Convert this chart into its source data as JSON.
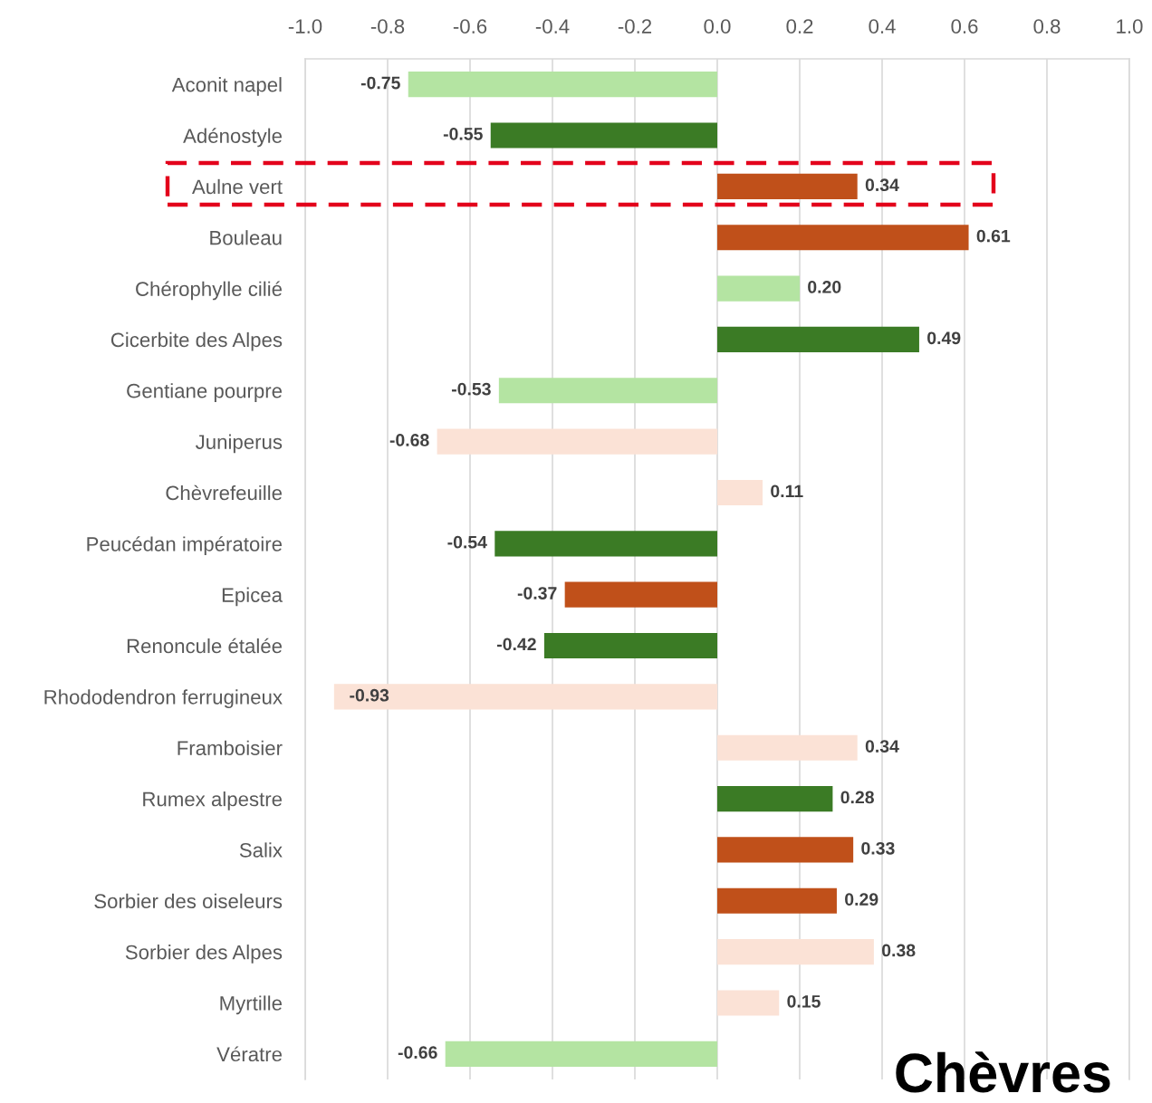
{
  "chart_data": {
    "type": "bar",
    "orientation": "horizontal",
    "categories": [
      "Aconit napel",
      "Adénostyle",
      "Aulne vert",
      "Bouleau",
      "Chérophylle cilié",
      "Cicerbite des Alpes",
      "Gentiane pourpre",
      "Juniperus",
      "Chèvrefeuille",
      "Peucédan impératoire",
      "Epicea",
      "Renoncule étalée",
      "Rhododendron ferrugineux",
      "Framboisier",
      "Rumex alpestre",
      "Salix",
      "Sorbier des oiseleurs",
      "Sorbier des Alpes",
      "Myrtille",
      "Vératre"
    ],
    "values": [
      -0.75,
      -0.55,
      0.34,
      0.61,
      0.2,
      0.49,
      -0.53,
      -0.68,
      0.11,
      -0.54,
      -0.37,
      -0.42,
      -0.93,
      0.34,
      0.28,
      0.33,
      0.29,
      0.38,
      0.15,
      -0.66
    ],
    "colors": [
      "#b4e4a2",
      "#3b7b25",
      "#c0501a",
      "#c0501a",
      "#b4e4a2",
      "#3b7b25",
      "#b4e4a2",
      "#fbe2d6",
      "#fbe2d6",
      "#3b7b25",
      "#c0501a",
      "#3b7b25",
      "#fbe2d6",
      "#fbe2d6",
      "#3b7b25",
      "#c0501a",
      "#c0501a",
      "#fbe2d6",
      "#fbe2d6",
      "#b4e4a2"
    ],
    "value_labels": [
      "-0.75",
      "-0.55",
      "0.34",
      "0.61",
      "0.20",
      "0.49",
      "-0.53",
      "-0.68",
      "0.11",
      "-0.54",
      "-0.37",
      "-0.42",
      "-0.93",
      "0.34",
      "0.28",
      "0.33",
      "0.29",
      "0.38",
      "0.15",
      "-0.66"
    ],
    "xlim": [
      -1.0,
      1.0
    ],
    "xticks": [
      {
        "value": -1.0,
        "label": "-1.0"
      },
      {
        "value": -0.8,
        "label": "-0.8"
      },
      {
        "value": -0.6,
        "label": "-0.6"
      },
      {
        "value": -0.4,
        "label": "-0.4"
      },
      {
        "value": -0.2,
        "label": "-0.2"
      },
      {
        "value": 0.0,
        "label": "0.0"
      },
      {
        "value": 0.2,
        "label": "0.2"
      },
      {
        "value": 0.4,
        "label": "0.4"
      },
      {
        "value": 0.6,
        "label": "0.6"
      },
      {
        "value": 0.8,
        "label": "0.8"
      },
      {
        "value": 1.0,
        "label": "1.0"
      }
    ],
    "grid": "x",
    "annotations": [
      "Chèvres"
    ]
  }
}
